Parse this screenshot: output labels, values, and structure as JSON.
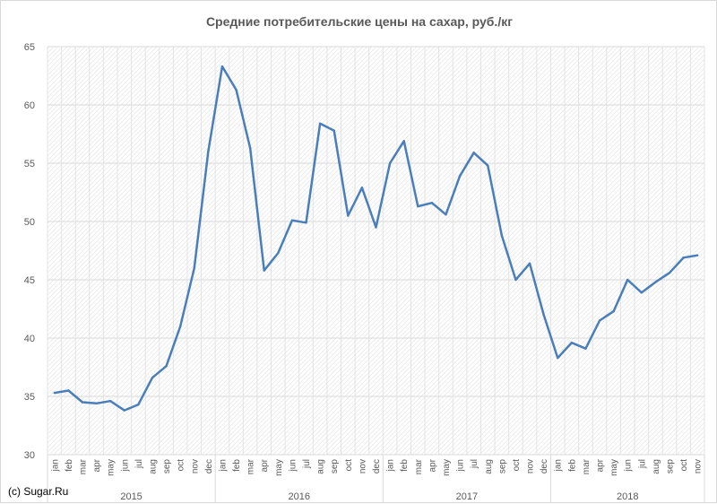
{
  "credit": "(c) Sugar.Ru",
  "chart_data": {
    "type": "line",
    "title": "Средние потребительские цены на сахар, руб./кг",
    "xlabel": "",
    "ylabel": "",
    "ylim": [
      30,
      65
    ],
    "yticks": [
      30,
      35,
      40,
      45,
      50,
      55,
      60,
      65
    ],
    "grid": true,
    "line_color": "#4a7ebb",
    "years": [
      {
        "label": "2015",
        "months": 12
      },
      {
        "label": "2016",
        "months": 12
      },
      {
        "label": "2017",
        "months": 12
      },
      {
        "label": "2018",
        "months": 11
      }
    ],
    "categories": [
      "jan",
      "feb",
      "mar",
      "apr",
      "may",
      "jun",
      "jul",
      "aug",
      "sep",
      "oct",
      "nov",
      "dec",
      "jan",
      "feb",
      "mar",
      "apr",
      "may",
      "jun",
      "jul",
      "aug",
      "sep",
      "oct",
      "nov",
      "dec",
      "jan",
      "feb",
      "mar",
      "apr",
      "may",
      "jun",
      "jul",
      "aug",
      "sep",
      "oct",
      "nov",
      "dec",
      "jan",
      "feb",
      "mar",
      "apr",
      "may",
      "jun",
      "jul",
      "aug",
      "sep",
      "oct",
      "nov"
    ],
    "series": [
      {
        "values": [
          35.3,
          35.5,
          34.5,
          34.4,
          34.6,
          33.8,
          34.3,
          36.6,
          37.6,
          41.0,
          46.0,
          56.0,
          63.3,
          61.3,
          56.3,
          45.8,
          47.3,
          50.1,
          49.9,
          58.4,
          57.8,
          50.5,
          52.9,
          49.5,
          55.0,
          56.9,
          51.3,
          51.6,
          50.6,
          53.9,
          55.9,
          54.8,
          48.8,
          45.0,
          46.4,
          42.0,
          38.3,
          39.6,
          39.1,
          41.5,
          42.3,
          45.0,
          43.9,
          44.8,
          45.6,
          46.9,
          47.1
        ]
      }
    ]
  }
}
